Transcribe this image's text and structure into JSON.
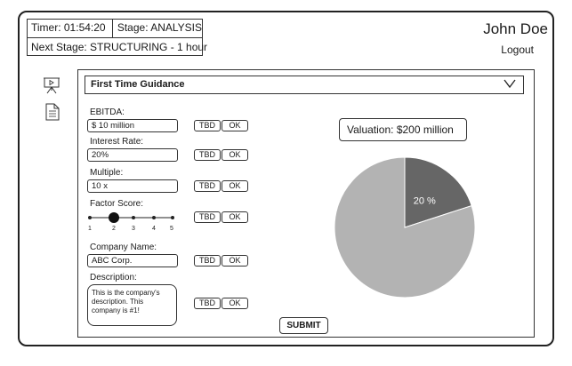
{
  "header": {
    "timer": "Timer: 01:54:20",
    "stage": "Stage: ANALYSIS",
    "next_stage": "Next Stage: STRUCTURING - 1 hour",
    "user_name": "John Doe",
    "logout": "Logout"
  },
  "sidebar": {
    "icons": [
      "presentation-icon",
      "document-icon"
    ]
  },
  "guidance": {
    "title": "First Time Guidance"
  },
  "fields": {
    "ebitda": {
      "label": "EBITDA:",
      "value": "$ 10 million"
    },
    "interest_rate": {
      "label": "Interest Rate:",
      "value": "20%"
    },
    "multiple": {
      "label": "Multiple:",
      "value": "10 x"
    },
    "factor_score": {
      "label": "Factor Score:",
      "ticks": [
        "1",
        "2",
        "3",
        "4",
        "5"
      ],
      "selected": 2
    },
    "company_name": {
      "label": "Company Name:",
      "value": "ABC Corp."
    },
    "description": {
      "label": "Description:",
      "value": "This is the company's description. This company is #1!"
    }
  },
  "buttons": {
    "tbd": "TBD",
    "ok": "OK",
    "submit": "SUBMIT"
  },
  "valuation": {
    "label": "Valuation: $200 million"
  },
  "chart_data": {
    "type": "pie",
    "slices": [
      {
        "label": "20 %",
        "value": 20,
        "color": "#666666"
      },
      {
        "label": "",
        "value": 80,
        "color": "#b3b3b3"
      }
    ]
  }
}
